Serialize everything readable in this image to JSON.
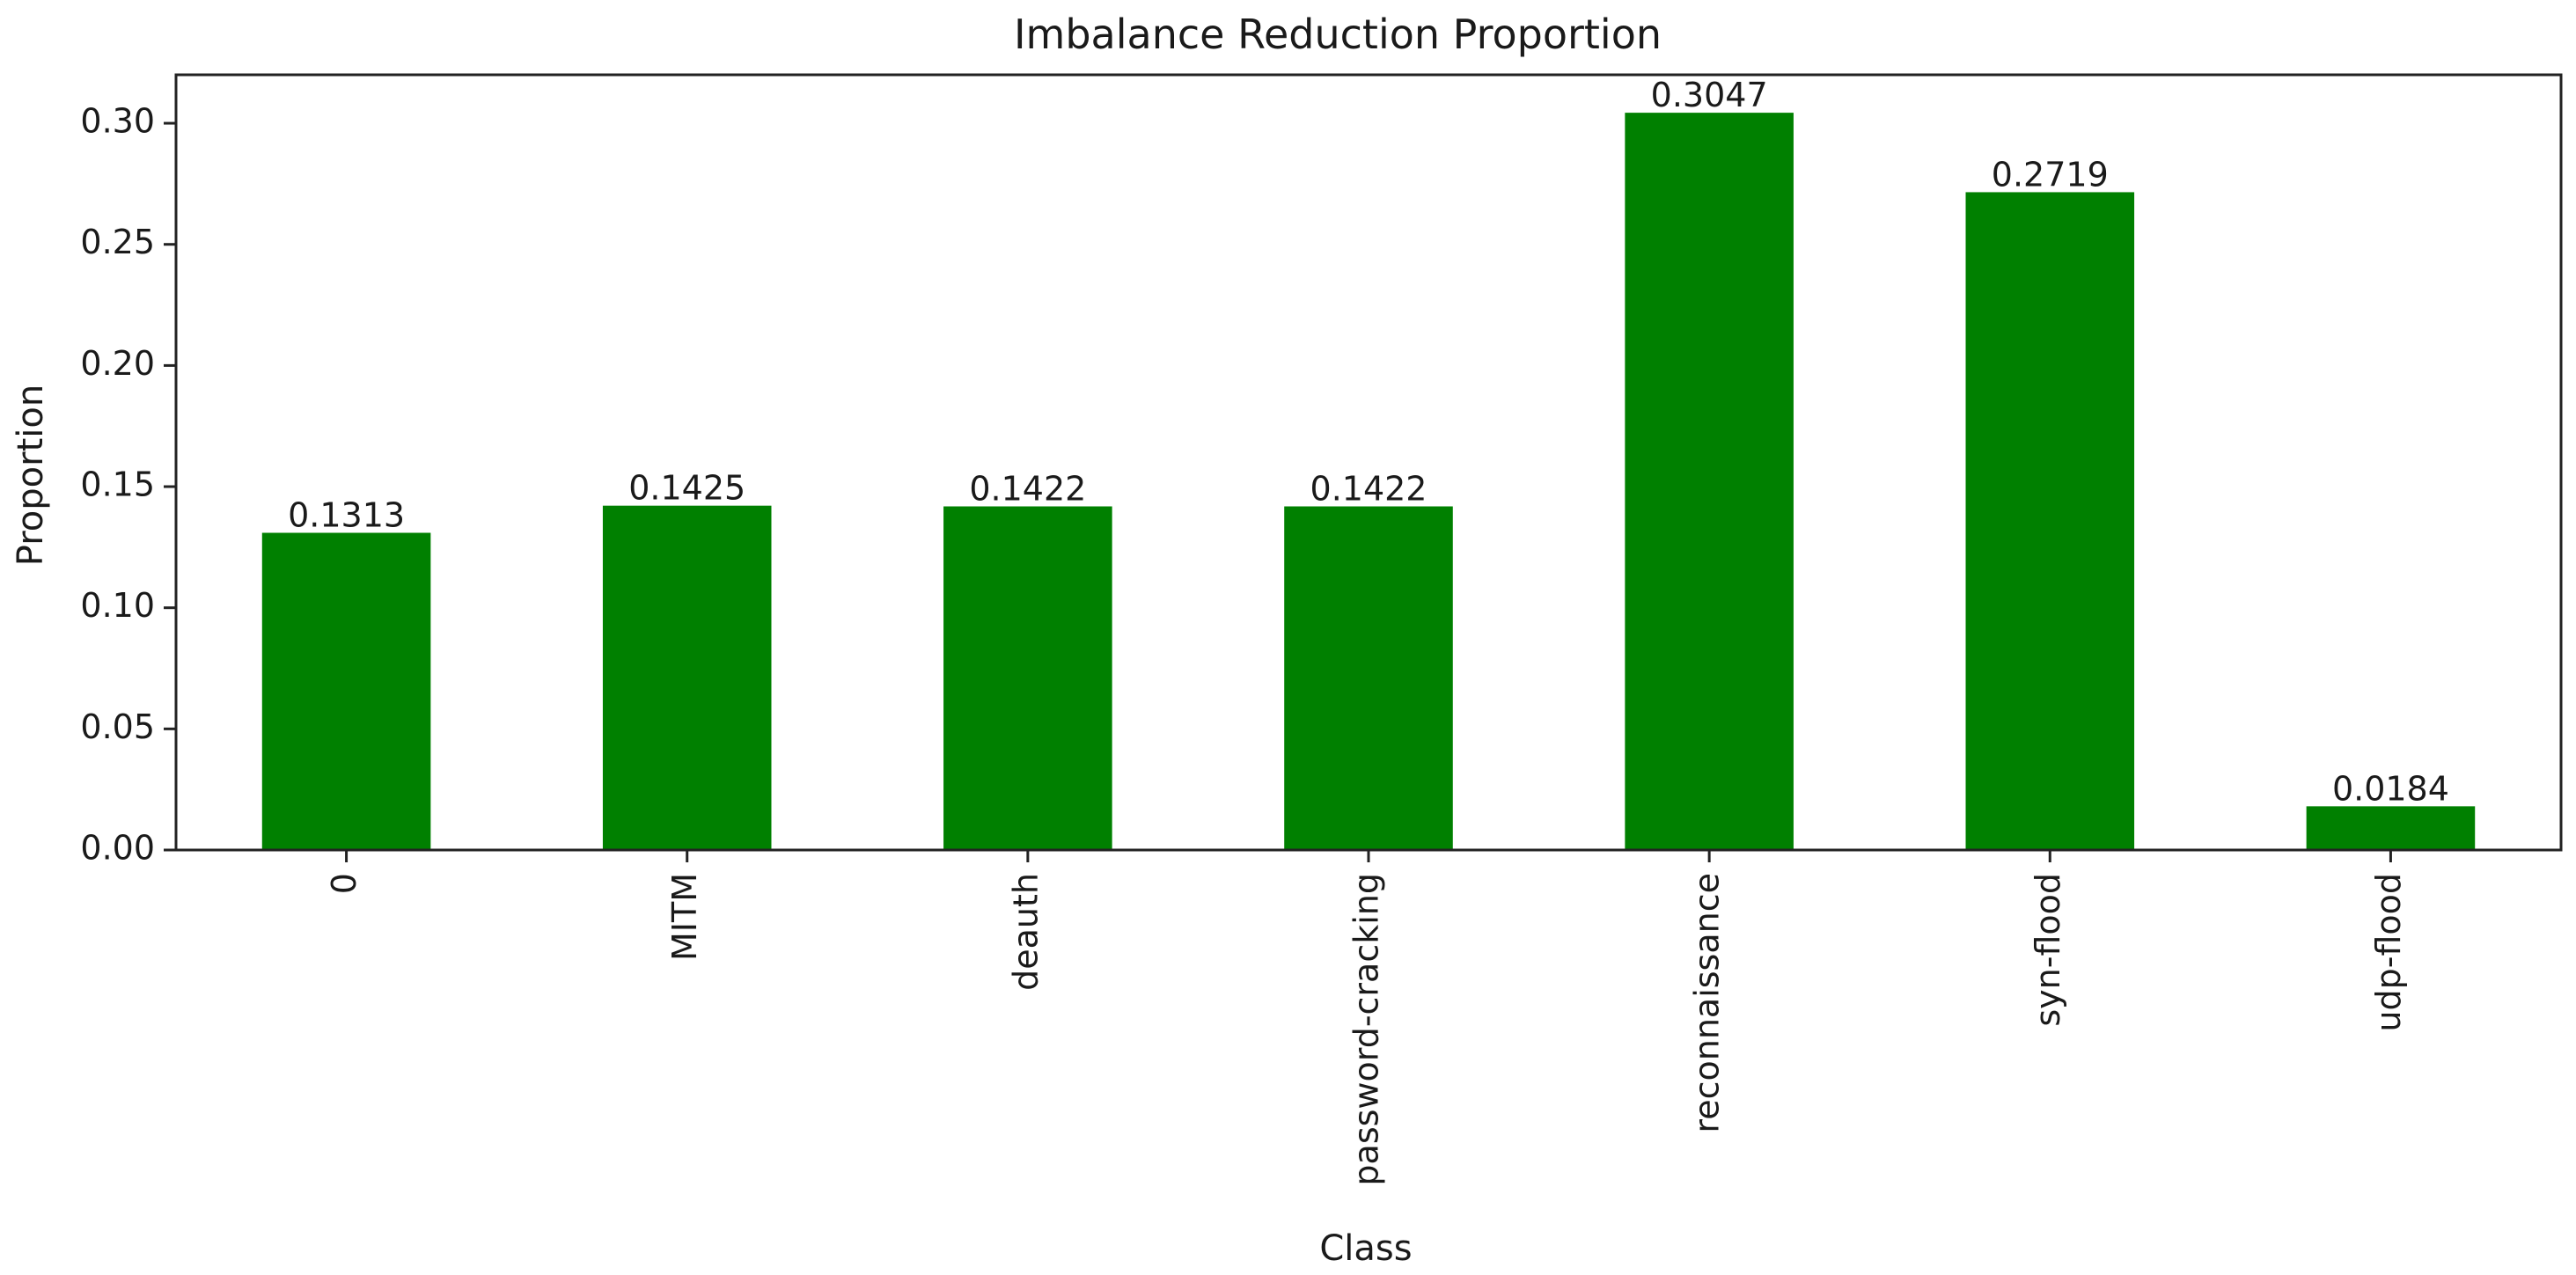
{
  "chart_data": {
    "type": "bar",
    "title": "Imbalance Reduction Proportion",
    "xlabel": "Class",
    "ylabel": "Proportion",
    "categories": [
      "0",
      "MITM",
      "deauth",
      "password-cracking",
      "reconnaissance",
      "syn-flood",
      "udp-flood"
    ],
    "values": [
      0.1313,
      0.1425,
      0.1422,
      0.1422,
      0.3047,
      0.2719,
      0.0184
    ],
    "data_labels": [
      "0.1313",
      "0.1425",
      "0.1422",
      "0.1422",
      "0.3047",
      "0.2719",
      "0.0184"
    ],
    "yticks": [
      0.0,
      0.05,
      0.1,
      0.15,
      0.2,
      0.25,
      0.3
    ],
    "ytick_labels": [
      "0.00",
      "0.05",
      "0.10",
      "0.15",
      "0.20",
      "0.25",
      "0.30"
    ],
    "ylim": [
      0,
      0.32
    ],
    "grid": false,
    "bar_color": "#008000"
  }
}
